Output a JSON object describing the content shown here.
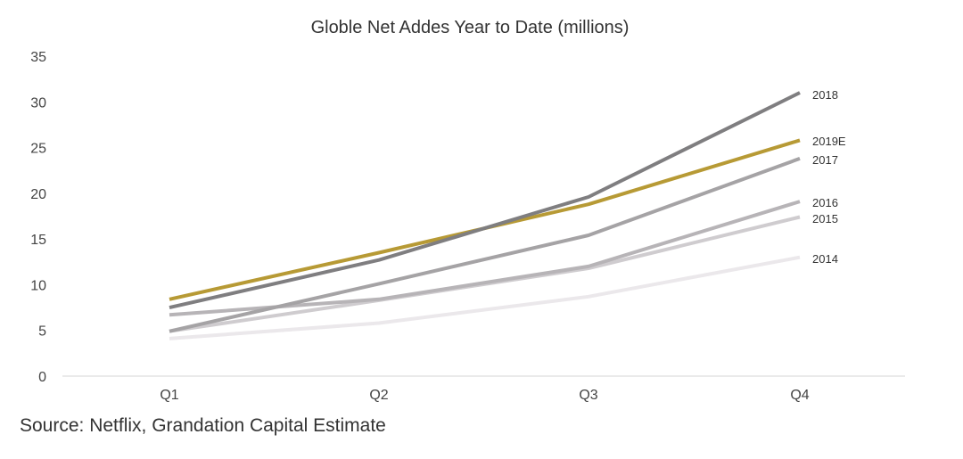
{
  "chart_data": {
    "type": "line",
    "title": "Globle Net Addes Year to Date (millions)",
    "xlabel": "",
    "ylabel": "",
    "categories": [
      "Q1",
      "Q2",
      "Q3",
      "Q4"
    ],
    "y_ticks": [
      "0",
      "5",
      "10",
      "15",
      "20",
      "25",
      "30",
      "35"
    ],
    "ylim": [
      0,
      35
    ],
    "grid": false,
    "legend": "direct labels at right end of each line",
    "series": [
      {
        "name": "2014",
        "values": [
          4.1,
          5.8,
          8.7,
          13.0
        ],
        "color": "#ebe8eb"
      },
      {
        "name": "2015",
        "values": [
          4.9,
          8.3,
          11.8,
          17.4
        ],
        "color": "#cfcccf"
      },
      {
        "name": "2016",
        "values": [
          6.7,
          8.4,
          12.0,
          19.1
        ],
        "color": "#b7b4b7"
      },
      {
        "name": "2017",
        "values": [
          4.9,
          10.1,
          15.4,
          23.8
        ],
        "color": "#a5a3a5"
      },
      {
        "name": "2019E",
        "values": [
          8.4,
          13.5,
          18.8,
          25.8
        ],
        "color": "#b79a35"
      },
      {
        "name": "2018",
        "values": [
          7.5,
          12.7,
          19.6,
          31.0
        ],
        "color": "#7f7e80"
      }
    ],
    "source": "Source: Netflix, Grandation Capital Estimate"
  }
}
